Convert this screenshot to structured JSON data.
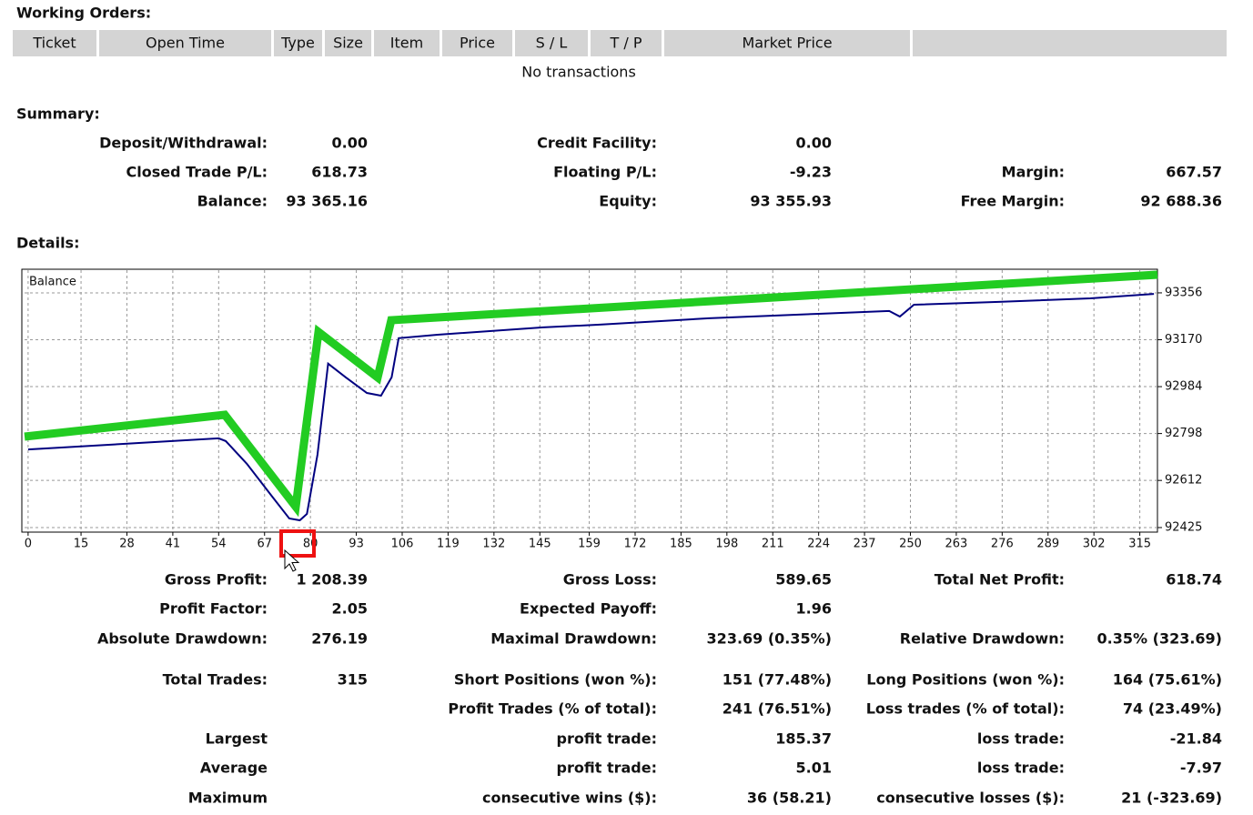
{
  "working_orders": {
    "title": "Working Orders:",
    "columns": [
      "Ticket",
      "Open Time",
      "Type",
      "Size",
      "Item",
      "Price",
      "S / L",
      "T / P",
      "Market Price"
    ],
    "empty": "No transactions"
  },
  "summary": {
    "title": "Summary:",
    "rows": [
      {
        "left": [
          "Deposit/Withdrawal:",
          "0.00"
        ],
        "mid": [
          "Credit Facility:",
          "0.00"
        ]
      },
      {
        "left": [
          "Closed Trade P/L:",
          "618.73"
        ],
        "mid": [
          "Floating P/L:",
          "-9.23"
        ],
        "right": [
          "Margin:",
          "667.57"
        ]
      },
      {
        "left": [
          "Balance:",
          "93 365.16"
        ],
        "mid": [
          "Equity:",
          "93 355.93"
        ],
        "right": [
          "Free Margin:",
          "92 688.36"
        ]
      }
    ]
  },
  "details": {
    "title": "Details:"
  },
  "chart_data": {
    "type": "line",
    "x": [
      0,
      27,
      54,
      56,
      62,
      69,
      74,
      77,
      79,
      82,
      85,
      90,
      96,
      100,
      103,
      105,
      116,
      146,
      162,
      193,
      224,
      244,
      247,
      251,
      275,
      301,
      319
    ],
    "series": [
      {
        "name": "Balance",
        "color": "#000080",
        "values": [
          92735,
          92757,
          92779,
          92768,
          92678,
          92551,
          92461,
          92454,
          92479,
          92714,
          93075,
          93021,
          92959,
          92948,
          93021,
          93176,
          93190,
          93219,
          93230,
          93255,
          93273,
          93284,
          93262,
          93309,
          93320,
          93334,
          93352
        ]
      }
    ],
    "xlim": [
      -1,
      320
    ],
    "xticks": [
      0,
      15,
      28,
      41,
      54,
      67,
      80,
      93,
      106,
      119,
      132,
      145,
      159,
      172,
      185,
      198,
      211,
      224,
      237,
      250,
      263,
      276,
      289,
      302,
      315
    ],
    "ylim": [
      92407,
      93446
    ],
    "yticks": [
      92425,
      92612,
      92798,
      92984,
      93170,
      93356
    ],
    "grid": true
  },
  "stats": {
    "rows": [
      {
        "left": [
          "Gross Profit:",
          "1 208.39"
        ],
        "mid": [
          "Gross Loss:",
          "589.65"
        ],
        "right": [
          "Total Net Profit:",
          "618.74"
        ]
      },
      {
        "left": [
          "Profit Factor:",
          "2.05"
        ],
        "mid": [
          "Expected Payoff:",
          "1.96"
        ]
      },
      {
        "left": [
          "Absolute Drawdown:",
          "276.19"
        ],
        "mid": [
          "Maximal Drawdown:",
          "323.69 (0.35%)"
        ],
        "right": [
          "Relative Drawdown:",
          "0.35% (323.69)"
        ]
      },
      {
        "left": [
          "Total Trades:",
          "315"
        ],
        "mid": [
          "Short Positions (won %):",
          "151 (77.48%)"
        ],
        "right": [
          "Long Positions (won %):",
          "164 (75.61%)"
        ]
      },
      {
        "mid": [
          "Profit Trades (% of total):",
          "241 (76.51%)"
        ],
        "right": [
          "Loss trades (% of total):",
          "74 (23.49%)"
        ]
      },
      {
        "left": [
          "Largest"
        ],
        "mid": [
          "profit trade:",
          "185.37"
        ],
        "right": [
          "loss trade:",
          "-21.84"
        ]
      },
      {
        "left": [
          "Average"
        ],
        "mid": [
          "profit trade:",
          "5.01"
        ],
        "right": [
          "loss trade:",
          "-7.97"
        ]
      },
      {
        "left": [
          "Maximum"
        ],
        "mid": [
          "consecutive wins ($):",
          "36 (58.21)"
        ],
        "right": [
          "consecutive losses ($):",
          "21 (-323.69)"
        ]
      }
    ]
  }
}
